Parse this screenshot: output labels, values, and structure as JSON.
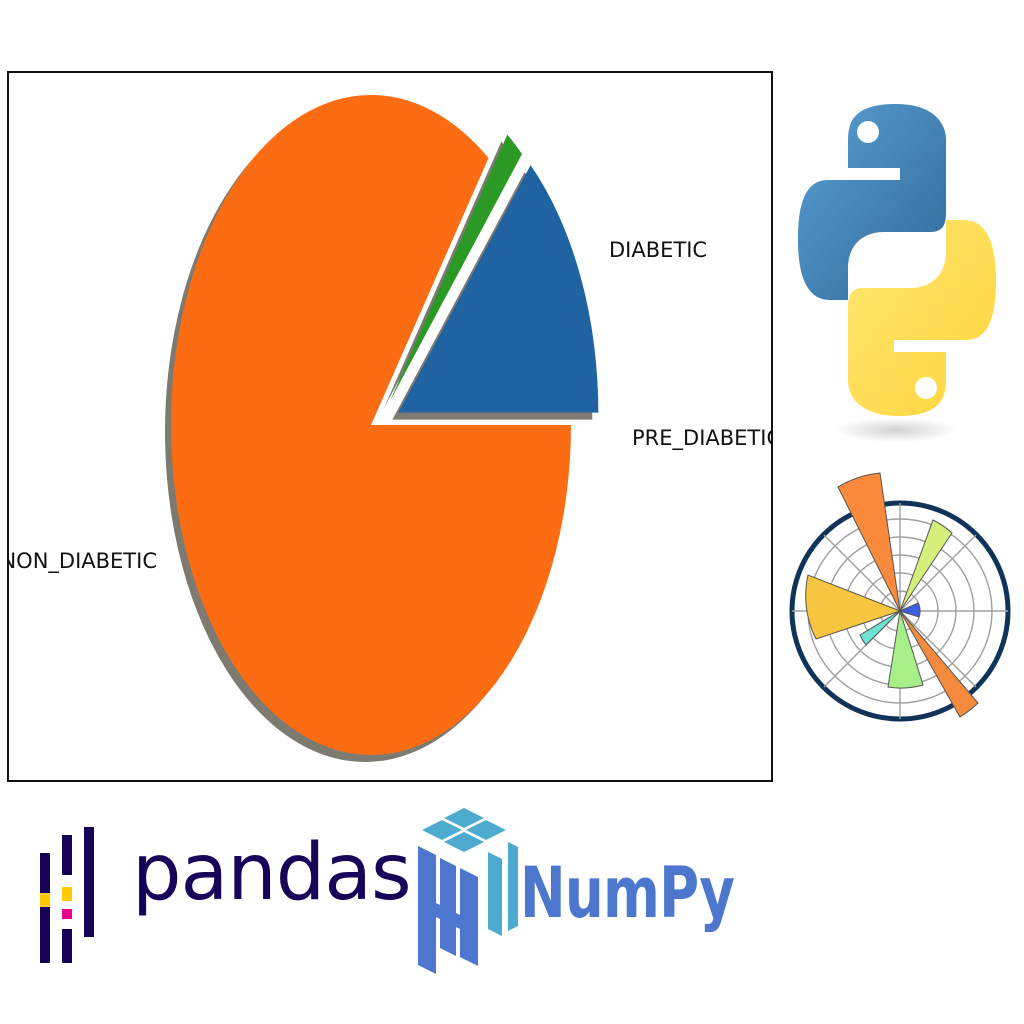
{
  "chart_data": {
    "type": "pie",
    "categories": [
      "DIABETIC",
      "PRE_DIABETIC",
      "NON_DIABETIC"
    ],
    "values": [
      13.5,
      1.5,
      85.0
    ],
    "colors": [
      "#1f63a3",
      "#2b9a25",
      "#fb6c13"
    ],
    "explode": [
      true,
      true,
      false
    ],
    "shadow": true,
    "labels": {
      "diabetic": "DIABETIC",
      "pre_diabetic": "PRE_DIABETIC",
      "non_diabetic": "NON_DIABETIC"
    }
  },
  "logos": {
    "pandas": "pandas",
    "numpy": "NumPy",
    "python_icon": "python-icon",
    "polar_chart_icon": "matplotlib-polar-icon"
  }
}
